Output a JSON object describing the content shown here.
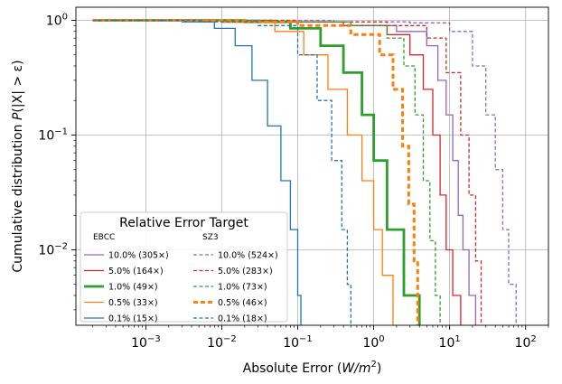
{
  "chart_data": {
    "type": "line",
    "subtype": "step-ccdf",
    "xscale": "log",
    "yscale": "log",
    "xlim": [
      0.00012,
      200
    ],
    "ylim": [
      0.0022,
      1.3
    ],
    "grid": true,
    "xlabel": "Absolute Error (W/m²)",
    "ylabel": "Cumulative distribution P(|X| > ε)",
    "x_ticks": [
      {
        "value": 0.001,
        "mant": "10",
        "exp": "−3"
      },
      {
        "value": 0.01,
        "mant": "10",
        "exp": "−2"
      },
      {
        "value": 0.1,
        "mant": "10",
        "exp": "−1"
      },
      {
        "value": 1,
        "mant": "10",
        "exp": "0"
      },
      {
        "value": 10,
        "mant": "10",
        "exp": "1"
      },
      {
        "value": 100,
        "mant": "10",
        "exp": "2"
      }
    ],
    "y_ticks": [
      {
        "value": 0.01,
        "mant": "10",
        "exp": "−2"
      },
      {
        "value": 0.1,
        "mant": "10",
        "exp": "−1"
      },
      {
        "value": 1,
        "mant": "10",
        "exp": "0"
      }
    ],
    "legend": {
      "title": "Relative Error Target",
      "location": "lower-left",
      "column_headers": [
        "EBCC",
        "SZ3"
      ]
    },
    "series": [
      {
        "name": "10.0% (305×)",
        "group": "EBCC",
        "color": "#9467bd",
        "style": "solid",
        "width": 1.3,
        "points": [
          [
            0.0002,
            1.0
          ],
          [
            0.05,
            0.97
          ],
          [
            0.5,
            0.9
          ],
          [
            2,
            0.8
          ],
          [
            5,
            0.6
          ],
          [
            7,
            0.3
          ],
          [
            9,
            0.15
          ],
          [
            11,
            0.06
          ],
          [
            13,
            0.02
          ],
          [
            15,
            0.01
          ],
          [
            18,
            0.004
          ],
          [
            22,
            0.002
          ]
        ]
      },
      {
        "name": "5.0% (164×)",
        "group": "EBCC",
        "color": "#d62728",
        "style": "solid",
        "width": 1.3,
        "points": [
          [
            0.0002,
            1.0
          ],
          [
            0.05,
            0.97
          ],
          [
            0.4,
            0.9
          ],
          [
            1.5,
            0.75
          ],
          [
            3,
            0.5
          ],
          [
            4.5,
            0.25
          ],
          [
            6,
            0.1
          ],
          [
            7.5,
            0.03
          ],
          [
            9,
            0.01
          ],
          [
            11,
            0.004
          ],
          [
            14,
            0.002
          ]
        ]
      },
      {
        "name": "1.0% (49×)",
        "group": "EBCC",
        "color": "#2ca02c",
        "style": "solid",
        "width": 2.8,
        "points": [
          [
            0.0002,
            1.0
          ],
          [
            0.02,
            0.97
          ],
          [
            0.08,
            0.85
          ],
          [
            0.2,
            0.6
          ],
          [
            0.4,
            0.35
          ],
          [
            0.7,
            0.15
          ],
          [
            1.0,
            0.06
          ],
          [
            1.5,
            0.015
          ],
          [
            2.5,
            0.004
          ],
          [
            4,
            0.002
          ]
        ]
      },
      {
        "name": "0.5% (33×)",
        "group": "EBCC",
        "color": "#ff7f0e",
        "style": "solid",
        "width": 1.3,
        "points": [
          [
            0.0002,
            1.0
          ],
          [
            0.01,
            0.96
          ],
          [
            0.05,
            0.8
          ],
          [
            0.12,
            0.5
          ],
          [
            0.25,
            0.25
          ],
          [
            0.45,
            0.1
          ],
          [
            0.7,
            0.04
          ],
          [
            1.0,
            0.015
          ],
          [
            1.3,
            0.006
          ],
          [
            1.8,
            0.002
          ]
        ]
      },
      {
        "name": "0.1% (15×)",
        "group": "EBCC",
        "color": "#1f77b4",
        "style": "solid",
        "width": 1.3,
        "points": [
          [
            0.0002,
            1.0
          ],
          [
            0.003,
            0.97
          ],
          [
            0.008,
            0.85
          ],
          [
            0.015,
            0.6
          ],
          [
            0.025,
            0.3
          ],
          [
            0.04,
            0.12
          ],
          [
            0.06,
            0.04
          ],
          [
            0.08,
            0.015
          ],
          [
            0.1,
            0.004
          ],
          [
            0.11,
            0.002
          ]
        ]
      },
      {
        "name": "10.0% (524×)",
        "group": "SZ3",
        "color": "#9467bd",
        "style": "dashed",
        "width": 1.3,
        "points": [
          [
            0.0002,
            1.0
          ],
          [
            0.3,
            0.97
          ],
          [
            3,
            0.95
          ],
          [
            10,
            0.8
          ],
          [
            20,
            0.4
          ],
          [
            30,
            0.15
          ],
          [
            40,
            0.05
          ],
          [
            50,
            0.015
          ],
          [
            60,
            0.005
          ],
          [
            75,
            0.002
          ]
        ]
      },
      {
        "name": "5.0% (283×)",
        "group": "SZ3",
        "color": "#d62728",
        "style": "dashed",
        "width": 1.3,
        "points": [
          [
            0.0002,
            1.0
          ],
          [
            0.1,
            0.97
          ],
          [
            1.5,
            0.9
          ],
          [
            5,
            0.7
          ],
          [
            9,
            0.35
          ],
          [
            14,
            0.1
          ],
          [
            18,
            0.03
          ],
          [
            22,
            0.008
          ],
          [
            26,
            0.002
          ]
        ]
      },
      {
        "name": "1.0% (73×)",
        "group": "SZ3",
        "color": "#2ca02c",
        "style": "dashed",
        "width": 1.3,
        "points": [
          [
            0.0002,
            1.0
          ],
          [
            0.05,
            0.97
          ],
          [
            0.5,
            0.9
          ],
          [
            1.5,
            0.7
          ],
          [
            2.5,
            0.4
          ],
          [
            3.5,
            0.15
          ],
          [
            4.5,
            0.04
          ],
          [
            5.5,
            0.012
          ],
          [
            6.5,
            0.004
          ],
          [
            7.5,
            0.002
          ]
        ]
      },
      {
        "name": "0.5% (46×)",
        "group": "SZ3",
        "color": "#ff7f0e",
        "style": "dashed",
        "width": 3,
        "points": [
          [
            0.0002,
            1.0
          ],
          [
            0.02,
            0.97
          ],
          [
            0.1,
            0.9
          ],
          [
            0.5,
            0.75
          ],
          [
            1.2,
            0.5
          ],
          [
            1.8,
            0.25
          ],
          [
            2.4,
            0.08
          ],
          [
            2.9,
            0.025
          ],
          [
            3.4,
            0.008
          ],
          [
            3.8,
            0.002
          ]
        ]
      },
      {
        "name": "0.1% (18×)",
        "group": "SZ3",
        "color": "#1f77b4",
        "style": "dashed",
        "width": 1.3,
        "points": [
          [
            0.0002,
            1.0
          ],
          [
            0.005,
            0.97
          ],
          [
            0.03,
            0.9
          ],
          [
            0.1,
            0.5
          ],
          [
            0.18,
            0.2
          ],
          [
            0.28,
            0.06
          ],
          [
            0.38,
            0.015
          ],
          [
            0.45,
            0.005
          ],
          [
            0.5,
            0.002
          ]
        ]
      }
    ]
  }
}
